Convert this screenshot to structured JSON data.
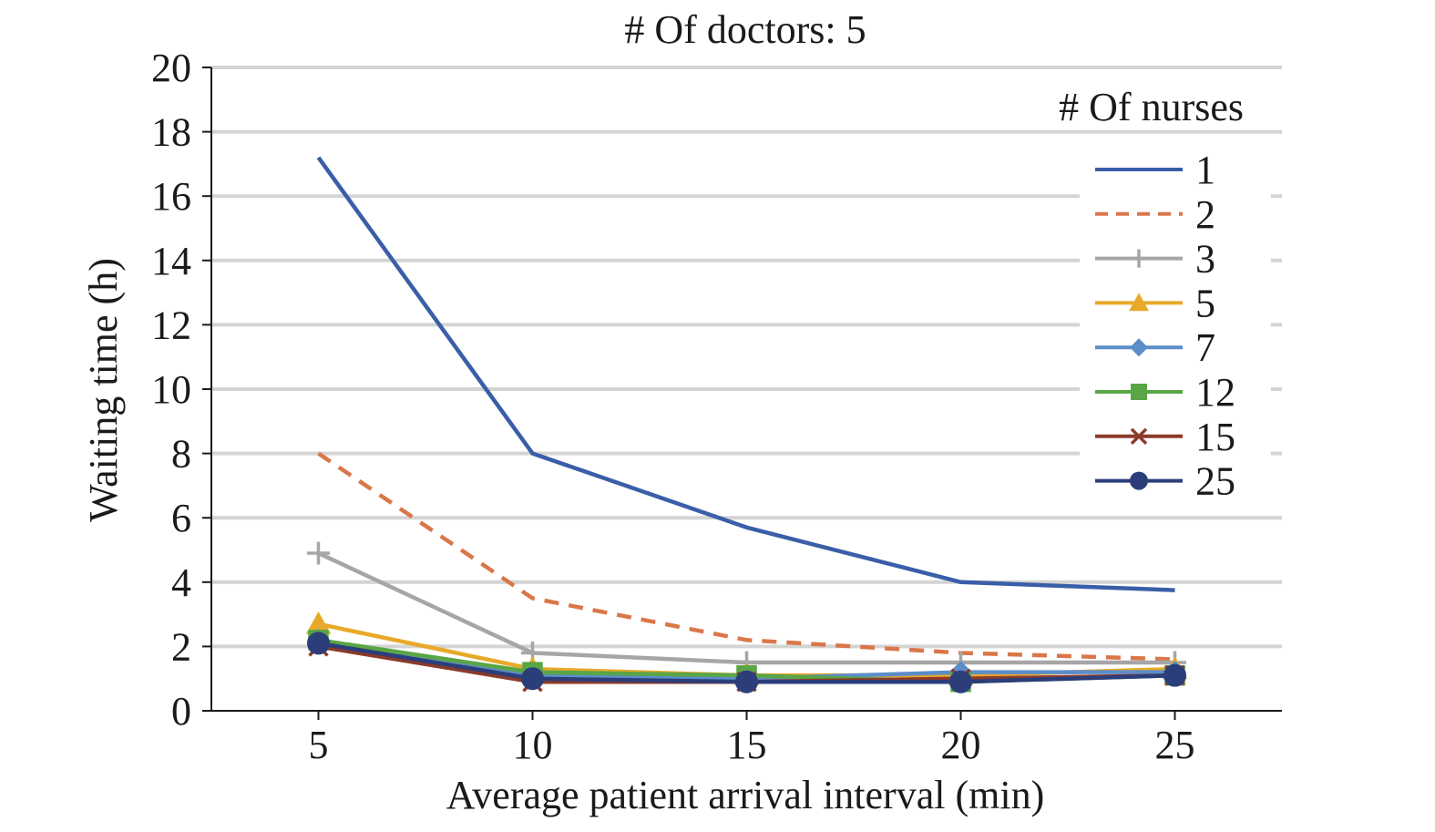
{
  "chart_data": {
    "type": "line",
    "title": "# Of doctors: 5",
    "xlabel": "Average patient arrival interval (min)",
    "ylabel": "Waiting time (h)",
    "x": [
      5,
      10,
      15,
      20,
      25
    ],
    "xlim": [
      2.5,
      27.5
    ],
    "ylim": [
      0,
      20
    ],
    "yticks": [
      0,
      2,
      4,
      6,
      8,
      10,
      12,
      14,
      16,
      18,
      20
    ],
    "xticks": [
      5,
      10,
      15,
      20,
      25
    ],
    "grid": "horizontal",
    "legend_title": "# Of nurses",
    "legend_position": "top-right",
    "series": [
      {
        "name": "1",
        "values": [
          17.2,
          8.0,
          5.7,
          4.0,
          3.75
        ],
        "color": "#3a5ea8",
        "dash": "solid",
        "marker": "none"
      },
      {
        "name": "2",
        "values": [
          8.0,
          3.5,
          2.2,
          1.8,
          1.6
        ],
        "color": "#d9774a",
        "dash": "dashed",
        "marker": "none"
      },
      {
        "name": "3",
        "values": [
          4.9,
          1.8,
          1.5,
          1.5,
          1.5
        ],
        "color": "#a6a6a6",
        "dash": "solid",
        "marker": "plus"
      },
      {
        "name": "5",
        "values": [
          2.7,
          1.3,
          1.1,
          1.1,
          1.3
        ],
        "color": "#e8a92a",
        "dash": "solid",
        "marker": "triangle"
      },
      {
        "name": "7",
        "values": [
          2.2,
          1.1,
          1.0,
          1.2,
          1.2
        ],
        "color": "#5b8dc9",
        "dash": "solid",
        "marker": "diamond"
      },
      {
        "name": "12",
        "values": [
          2.2,
          1.2,
          1.1,
          0.9,
          1.1
        ],
        "color": "#5aa546",
        "dash": "solid",
        "marker": "square"
      },
      {
        "name": "15",
        "values": [
          2.0,
          0.9,
          0.9,
          1.0,
          1.1
        ],
        "color": "#8b3a2a",
        "dash": "solid",
        "marker": "x"
      },
      {
        "name": "25",
        "values": [
          2.1,
          1.0,
          0.9,
          0.9,
          1.1
        ],
        "color": "#2b3e7a",
        "dash": "solid",
        "marker": "circle"
      }
    ]
  }
}
